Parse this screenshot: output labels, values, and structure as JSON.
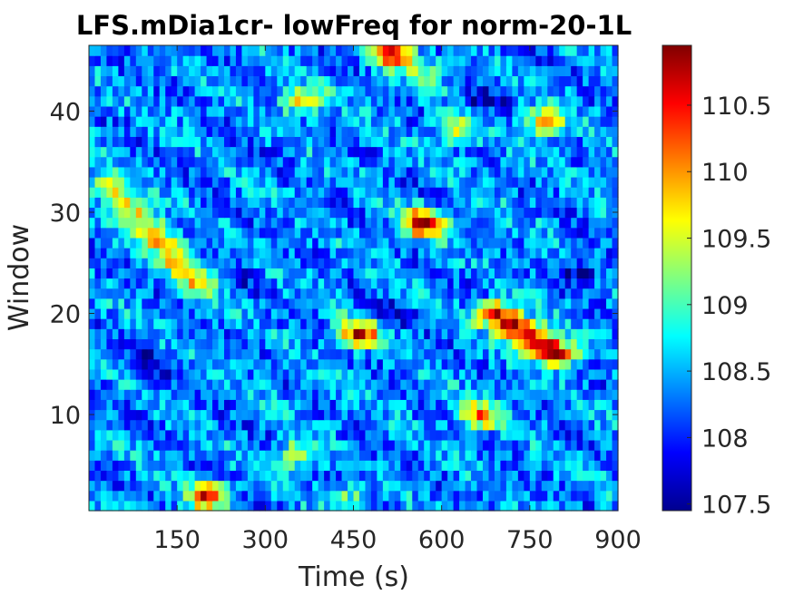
{
  "chart_data": {
    "type": "heatmap",
    "title": "LFS.mDia1cr- lowFreq for norm-20-1L",
    "xlabel": "Time (s)",
    "ylabel": "Window",
    "xlim": [
      0,
      900
    ],
    "ylim": [
      0.5,
      46.5
    ],
    "x_ticks": [
      150,
      300,
      450,
      600,
      750,
      900
    ],
    "x_tick_labels": [
      "150",
      "300",
      "450",
      "600",
      "750",
      "900"
    ],
    "y_ticks": [
      10,
      20,
      30,
      40
    ],
    "y_tick_labels": [
      "10",
      "20",
      "30",
      "40"
    ],
    "n_windows": 46,
    "n_time_bins": 90,
    "colormap": "jet",
    "clim": [
      107.45,
      110.95
    ],
    "colorbar": {
      "ticks": [
        107.5,
        108,
        108.5,
        109,
        109.5,
        110,
        110.5
      ],
      "tick_labels": [
        "107.5",
        "108",
        "108.5",
        "109",
        "109.5",
        "110",
        "110.5"
      ]
    },
    "baseline_value": 108.35,
    "hotspots": [
      {
        "t": 570,
        "w": 29,
        "peak": 110.9,
        "note": "red blob"
      },
      {
        "t": 460,
        "w": 18,
        "peak": 110.5,
        "note": "red"
      },
      {
        "t": 200,
        "w": 2,
        "peak": 110.3,
        "note": "orange"
      },
      {
        "t": 515,
        "w": 46,
        "peak": 110.8,
        "note": "red at top"
      },
      {
        "t": 365,
        "w": 41,
        "peak": 109.9,
        "note": "yellow"
      },
      {
        "t": 665,
        "w": 10,
        "peak": 110.0,
        "note": "orange"
      },
      {
        "t": 625,
        "w": 38,
        "peak": 109.6,
        "note": "yellow"
      },
      {
        "t": 775,
        "w": 39,
        "peak": 109.8,
        "note": "orange"
      },
      {
        "t": 355,
        "w": 6,
        "peak": 109.6,
        "note": "yellow"
      },
      {
        "t": 440,
        "w": 2,
        "peak": 109.2
      },
      {
        "t": 570,
        "w": 44,
        "peak": 109.3
      }
    ],
    "ridges": [
      {
        "from_t": 30,
        "from_w": 33,
        "to_t": 190,
        "to_w": 23,
        "peak": 109.8,
        "note": "diagonal yellow streak"
      },
      {
        "from_t": 690,
        "from_w": 20,
        "to_t": 800,
        "to_w": 16,
        "peak": 110.95,
        "note": "dark red diagonal"
      }
    ],
    "cold_spots": [
      {
        "t": 100,
        "w": 15,
        "peak": 107.6
      },
      {
        "t": 670,
        "w": 41,
        "peak": 107.6
      },
      {
        "t": 840,
        "w": 24,
        "peak": 107.6
      },
      {
        "t": 520,
        "w": 20,
        "peak": 107.8
      },
      {
        "t": 250,
        "w": 24,
        "peak": 107.9
      },
      {
        "t": 460,
        "w": 4,
        "peak": 107.8
      }
    ]
  }
}
